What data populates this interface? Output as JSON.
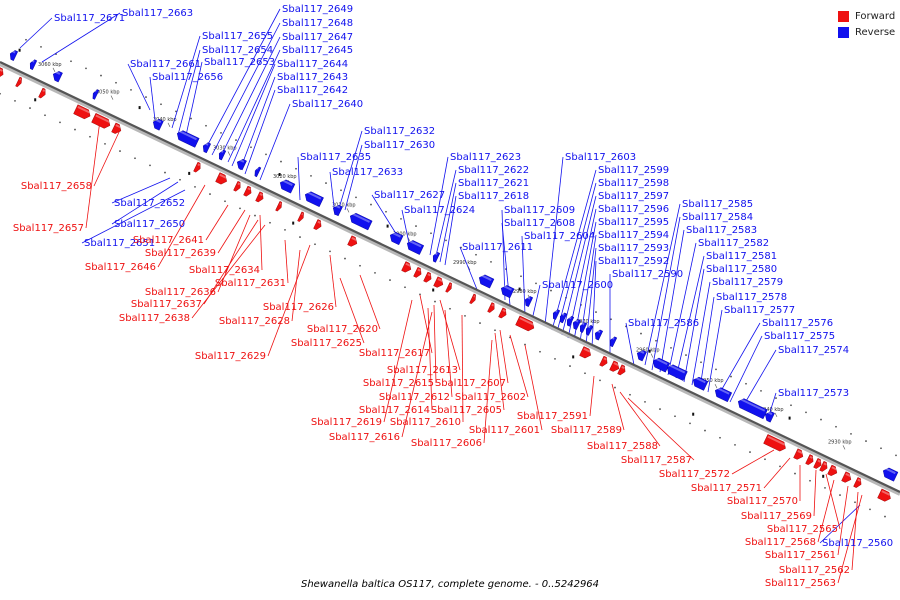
{
  "legend": {
    "forward_label": "Forward",
    "reverse_label": "Reverse",
    "forward_color": "#ee1111",
    "reverse_color": "#1111ee"
  },
  "caption": "Shewanella baltica OS117, complete genome. - 0..5242964",
  "ticks": [
    "3060 kbp",
    "3050 kbp",
    "3040 kbp",
    "3030 kbp",
    "3020 kbp",
    "3010 kbp",
    "3000 kbp",
    "2990 kbp",
    "2980 kbp",
    "2970 kbp",
    "2960 kbp",
    "2950 kbp",
    "2940 kbp",
    "2930 kbp"
  ],
  "reverse_genes": [
    "Sbal117_2671",
    "Sbal117_2663",
    "Sbal117_2661",
    "Sbal117_2656",
    "Sbal117_2655",
    "Sbal117_2654",
    "Sbal117_2653",
    "Sbal117_2649",
    "Sbal117_2648",
    "Sbal117_2647",
    "Sbal117_2645",
    "Sbal117_2644",
    "Sbal117_2643",
    "Sbal117_2642",
    "Sbal117_2640",
    "Sbal117_2652",
    "Sbal117_2650",
    "Sbal117_2651",
    "Sbal117_2635",
    "Sbal117_2633",
    "Sbal117_2632",
    "Sbal117_2630",
    "Sbal117_2627",
    "Sbal117_2624",
    "Sbal117_2623",
    "Sbal117_2622",
    "Sbal117_2621",
    "Sbal117_2618",
    "Sbal117_2611",
    "Sbal117_2609",
    "Sbal117_2608",
    "Sbal117_2604",
    "Sbal117_2603",
    "Sbal117_2599",
    "Sbal117_2598",
    "Sbal117_2597",
    "Sbal117_2596",
    "Sbal117_2595",
    "Sbal117_2594",
    "Sbal117_2593",
    "Sbal117_2592",
    "Sbal117_2590",
    "Sbal117_2600",
    "Sbal117_2586",
    "Sbal117_2585",
    "Sbal117_2584",
    "Sbal117_2583",
    "Sbal117_2582",
    "Sbal117_2581",
    "Sbal117_2580",
    "Sbal117_2579",
    "Sbal117_2578",
    "Sbal117_2577",
    "Sbal117_2576",
    "Sbal117_2575",
    "Sbal117_2574",
    "Sbal117_2573",
    "Sbal117_2560"
  ],
  "forward_genes": [
    "Sbal117_2658",
    "Sbal117_2657",
    "Sbal117_2641",
    "Sbal117_2639",
    "Sbal117_2646",
    "Sbal117_2634",
    "Sbal117_2631",
    "Sbal117_2636",
    "Sbal117_2637",
    "Sbal117_2638",
    "Sbal117_2626",
    "Sbal117_2628",
    "Sbal117_2620",
    "Sbal117_2625",
    "Sbal117_2629",
    "Sbal117_2617",
    "Sbal117_2613",
    "Sbal117_2615",
    "Sbal117_2612",
    "Sbal117_2614",
    "Sbal117_2619",
    "Sbal117_2616",
    "Sbal117_2610",
    "Sbal117_2607",
    "Sbal117_2602",
    "Sbal117_2605",
    "Sbal117_2606",
    "Sbal117_2601",
    "Sbal117_2591",
    "Sbal117_2589",
    "Sbal117_2588",
    "Sbal117_2587",
    "Sbal117_2572",
    "Sbal117_2571",
    "Sbal117_2570",
    "Sbal117_2569",
    "Sbal117_2565",
    "Sbal117_2568",
    "Sbal117_2561",
    "Sbal117_2562",
    "Sbal117_2563"
  ]
}
